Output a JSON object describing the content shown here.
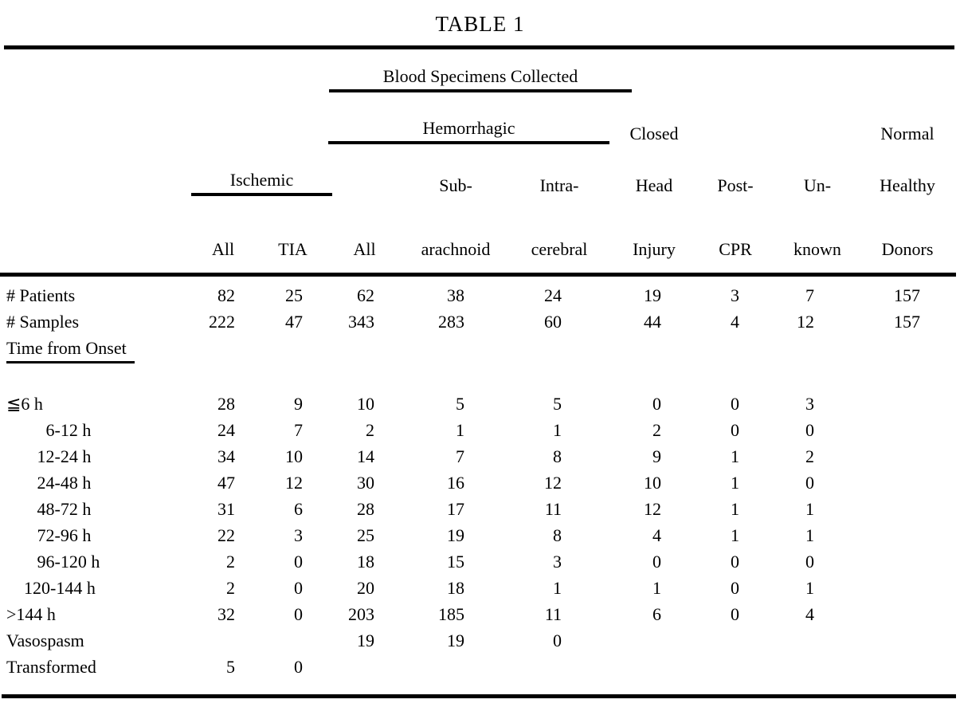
{
  "title": "TABLE 1",
  "header": {
    "blood_specimens_collected": "Blood Specimens Collected",
    "hemorrhagic": "Hemorrhagic",
    "ischemic": "Ischemic",
    "closed": "Closed",
    "normal": "Normal",
    "sub": "Sub-",
    "intra": "Intra-",
    "head": "Head",
    "post": "Post-",
    "un": "Un-",
    "healthy": "Healthy",
    "col_all_ischemic": "All",
    "col_tia": "TIA",
    "col_all_hemorrhagic": "All",
    "col_arachnoid": "arachnoid",
    "col_cerebral": "cerebral",
    "col_injury": "Injury",
    "col_cpr": "CPR",
    "col_known": "known",
    "col_donors": "Donors"
  },
  "rows": [
    {
      "label": "# Patients",
      "values": [
        "82",
        "25",
        "62",
        "38",
        "24",
        "19",
        "3",
        "7",
        "157"
      ]
    },
    {
      "label": "# Samples",
      "values": [
        "222",
        "47",
        "343",
        "283",
        "60",
        "44",
        "4",
        "12",
        "157"
      ]
    },
    {
      "label": "Time from Onset",
      "underline": true,
      "values": [
        "",
        "",
        "",
        "",
        "",
        "",
        "",
        "",
        ""
      ]
    },
    {
      "label": "≦6 h",
      "gap": true,
      "values": [
        "28",
        "9",
        "10",
        "5",
        "5",
        "0",
        "0",
        "3",
        ""
      ]
    },
    {
      "label": "         6-12 h",
      "values": [
        "24",
        "7",
        "2",
        "1",
        "1",
        "2",
        "0",
        "0",
        ""
      ]
    },
    {
      "label": "       12-24 h",
      "values": [
        "34",
        "10",
        "14",
        "7",
        "8",
        "9",
        "1",
        "2",
        ""
      ]
    },
    {
      "label": "       24-48 h",
      "values": [
        "47",
        "12",
        "30",
        "16",
        "12",
        "10",
        "1",
        "0",
        ""
      ]
    },
    {
      "label": "       48-72 h",
      "values": [
        "31",
        "6",
        "28",
        "17",
        "11",
        "12",
        "1",
        "1",
        ""
      ]
    },
    {
      "label": "       72-96 h",
      "values": [
        "22",
        "3",
        "25",
        "19",
        "8",
        "4",
        "1",
        "1",
        ""
      ]
    },
    {
      "label": "       96-120 h",
      "values": [
        "2",
        "0",
        "18",
        "15",
        "3",
        "0",
        "0",
        "0",
        ""
      ]
    },
    {
      "label": "    120-144 h",
      "values": [
        "2",
        "0",
        "20",
        "18",
        "1",
        "1",
        "0",
        "1",
        ""
      ]
    },
    {
      "label": ">144 h",
      "values": [
        "32",
        "0",
        "203",
        "185",
        "11",
        "6",
        "0",
        "4",
        ""
      ]
    },
    {
      "label": "Vasospasm",
      "values": [
        "",
        "",
        "19",
        "19",
        "0",
        "",
        "",
        "",
        ""
      ]
    },
    {
      "label": "Transformed",
      "values": [
        "5",
        "0",
        "",
        "",
        "",
        "",
        "",
        "",
        ""
      ]
    }
  ]
}
